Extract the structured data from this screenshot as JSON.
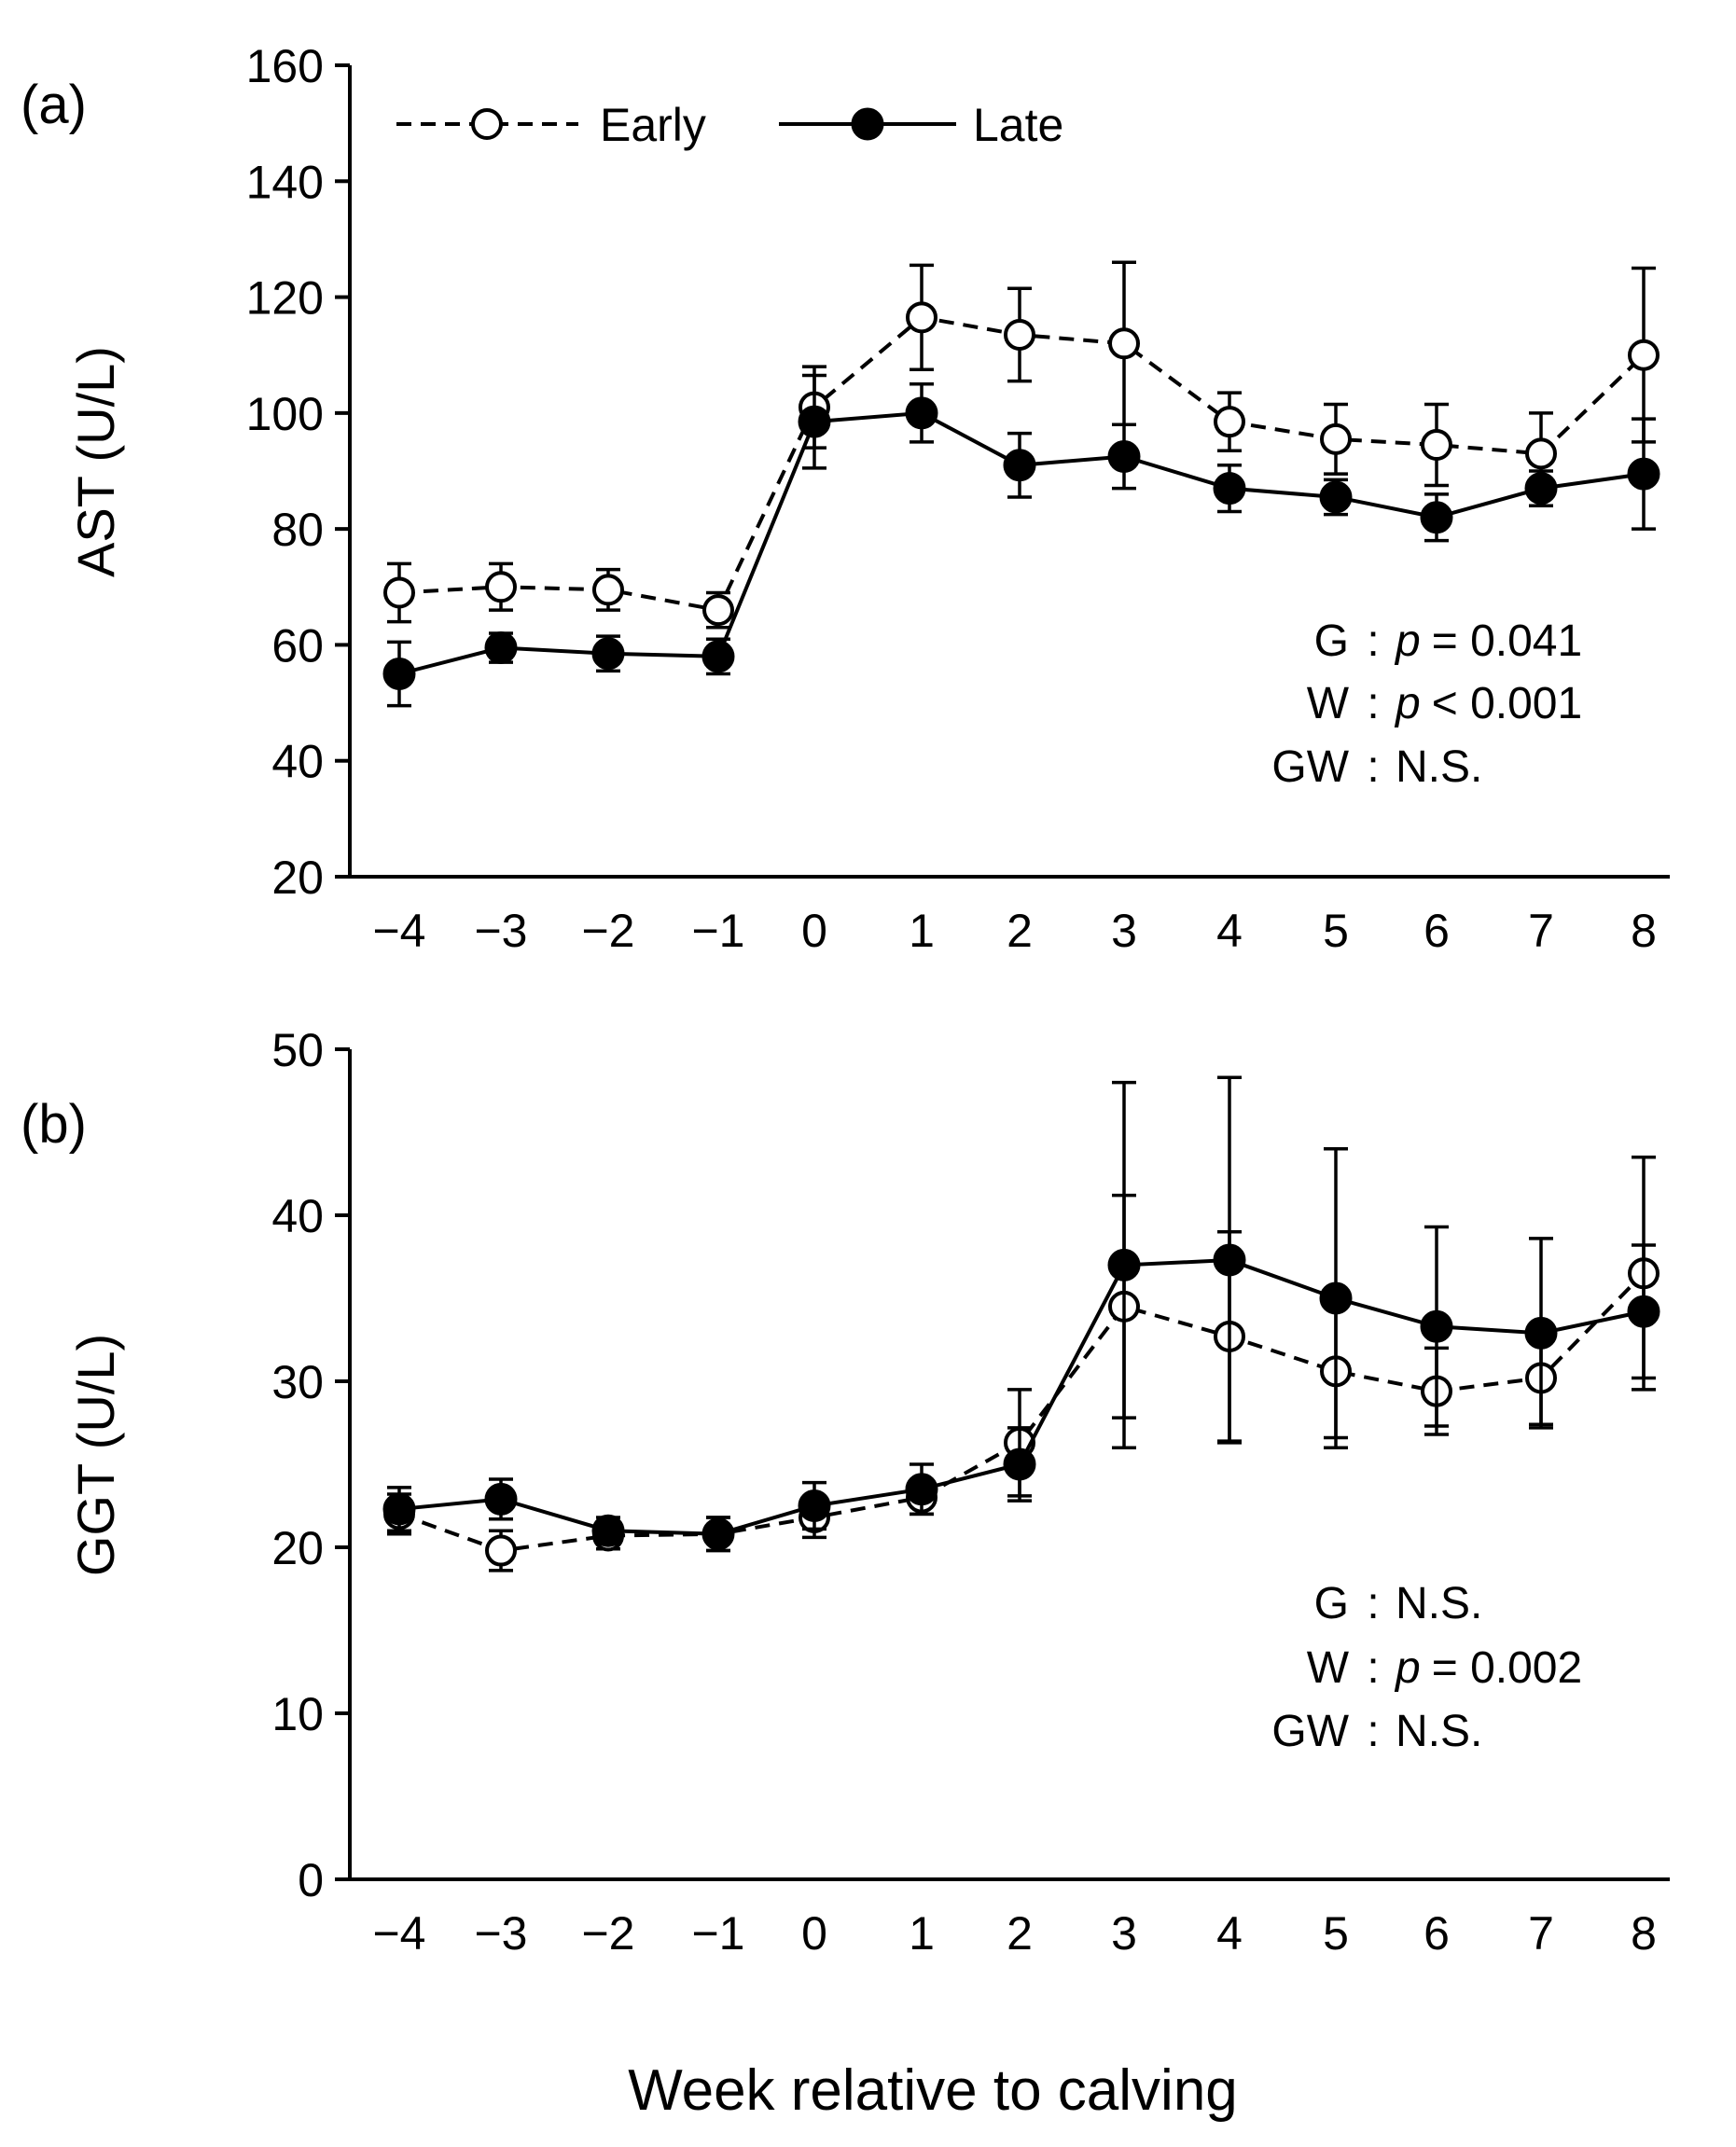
{
  "figure": {
    "xlabel": "Week relative to calving"
  },
  "chart_data": [
    {
      "type": "line",
      "panel_label": "(a)",
      "ylabel": "AST (U/L)",
      "xlabel": "",
      "ylim": [
        20,
        160
      ],
      "yticks": [
        20,
        40,
        60,
        80,
        100,
        120,
        140,
        160
      ],
      "x": [
        -4,
        -3,
        -2,
        -1,
        0,
        1,
        2,
        3,
        4,
        5,
        6,
        7,
        8
      ],
      "xtick_labels": [
        "−4",
        "−3",
        "−2",
        "−1",
        "0",
        "1",
        "2",
        "3",
        "4",
        "5",
        "6",
        "7",
        "8"
      ],
      "grid": false,
      "legend": {
        "placement": "top-left",
        "entries": [
          "Early",
          "Late"
        ]
      },
      "series": [
        {
          "name": "Early",
          "style": "dashed",
          "marker": "open-circle",
          "color": "#000000",
          "values": [
            69,
            70,
            69.5,
            66,
            101,
            116.5,
            113.5,
            112,
            98.5,
            95.5,
            94.5,
            93,
            110
          ],
          "errors": [
            5,
            4,
            3.5,
            3,
            7,
            9,
            8,
            14,
            5,
            6,
            7,
            7,
            15
          ]
        },
        {
          "name": "Late",
          "style": "solid",
          "marker": "filled-circle",
          "color": "#000000",
          "values": [
            55,
            59.5,
            58.5,
            58,
            98.5,
            100,
            91,
            92.5,
            87,
            85.5,
            82,
            87,
            89.5
          ],
          "errors": [
            5.5,
            2.5,
            3,
            3,
            8,
            5,
            5.5,
            5.5,
            4,
            3,
            4,
            3,
            9.5
          ]
        }
      ],
      "annotations": [
        {
          "term": "G",
          "separator": ":",
          "p_italic": "p",
          "value": "= 0.041"
        },
        {
          "term": "W",
          "separator": ":",
          "p_italic": "p",
          "value": "< 0.001"
        },
        {
          "term": "GW",
          "separator": ":",
          "p_italic": "",
          "value": "N.S."
        }
      ]
    },
    {
      "type": "line",
      "panel_label": "(b)",
      "ylabel": "GGT (U/L)",
      "xlabel": "Week relative to calving",
      "ylim": [
        0,
        50
      ],
      "yticks": [
        0,
        10,
        20,
        30,
        40,
        50
      ],
      "x": [
        -4,
        -3,
        -2,
        -1,
        0,
        1,
        2,
        3,
        4,
        5,
        6,
        7,
        8
      ],
      "xtick_labels": [
        "−4",
        "−3",
        "−2",
        "−1",
        "0",
        "1",
        "2",
        "3",
        "4",
        "5",
        "6",
        "7",
        "8"
      ],
      "grid": false,
      "series": [
        {
          "name": "Early",
          "style": "dashed",
          "marker": "open-circle",
          "color": "#000000",
          "values": [
            22,
            19.8,
            20.7,
            20.8,
            21.8,
            23,
            26.3,
            34.5,
            32.7,
            30.6,
            29.4,
            30.2,
            36.5
          ],
          "errors": [
            1.2,
            1.2,
            0.8,
            1,
            1.2,
            1,
            3.2,
            6.7,
            6.3,
            4,
            2.6,
            2.8,
            7
          ]
        },
        {
          "name": "Late",
          "style": "solid",
          "marker": "filled-circle",
          "color": "#000000",
          "values": [
            22.3,
            22.9,
            21,
            20.8,
            22.5,
            23.5,
            25,
            37,
            37.3,
            35,
            33.3,
            32.9,
            34.2
          ],
          "errors": [
            1.3,
            1.2,
            0.8,
            1,
            1.4,
            1.5,
            2.2,
            11,
            11,
            9,
            6,
            5.7,
            4
          ]
        }
      ],
      "annotations": [
        {
          "term": "G",
          "separator": ":",
          "p_italic": "",
          "value": "N.S."
        },
        {
          "term": "W",
          "separator": ":",
          "p_italic": "p",
          "value": "=  0.002"
        },
        {
          "term": "GW",
          "separator": ":",
          "p_italic": "",
          "value": "N.S."
        }
      ]
    }
  ]
}
